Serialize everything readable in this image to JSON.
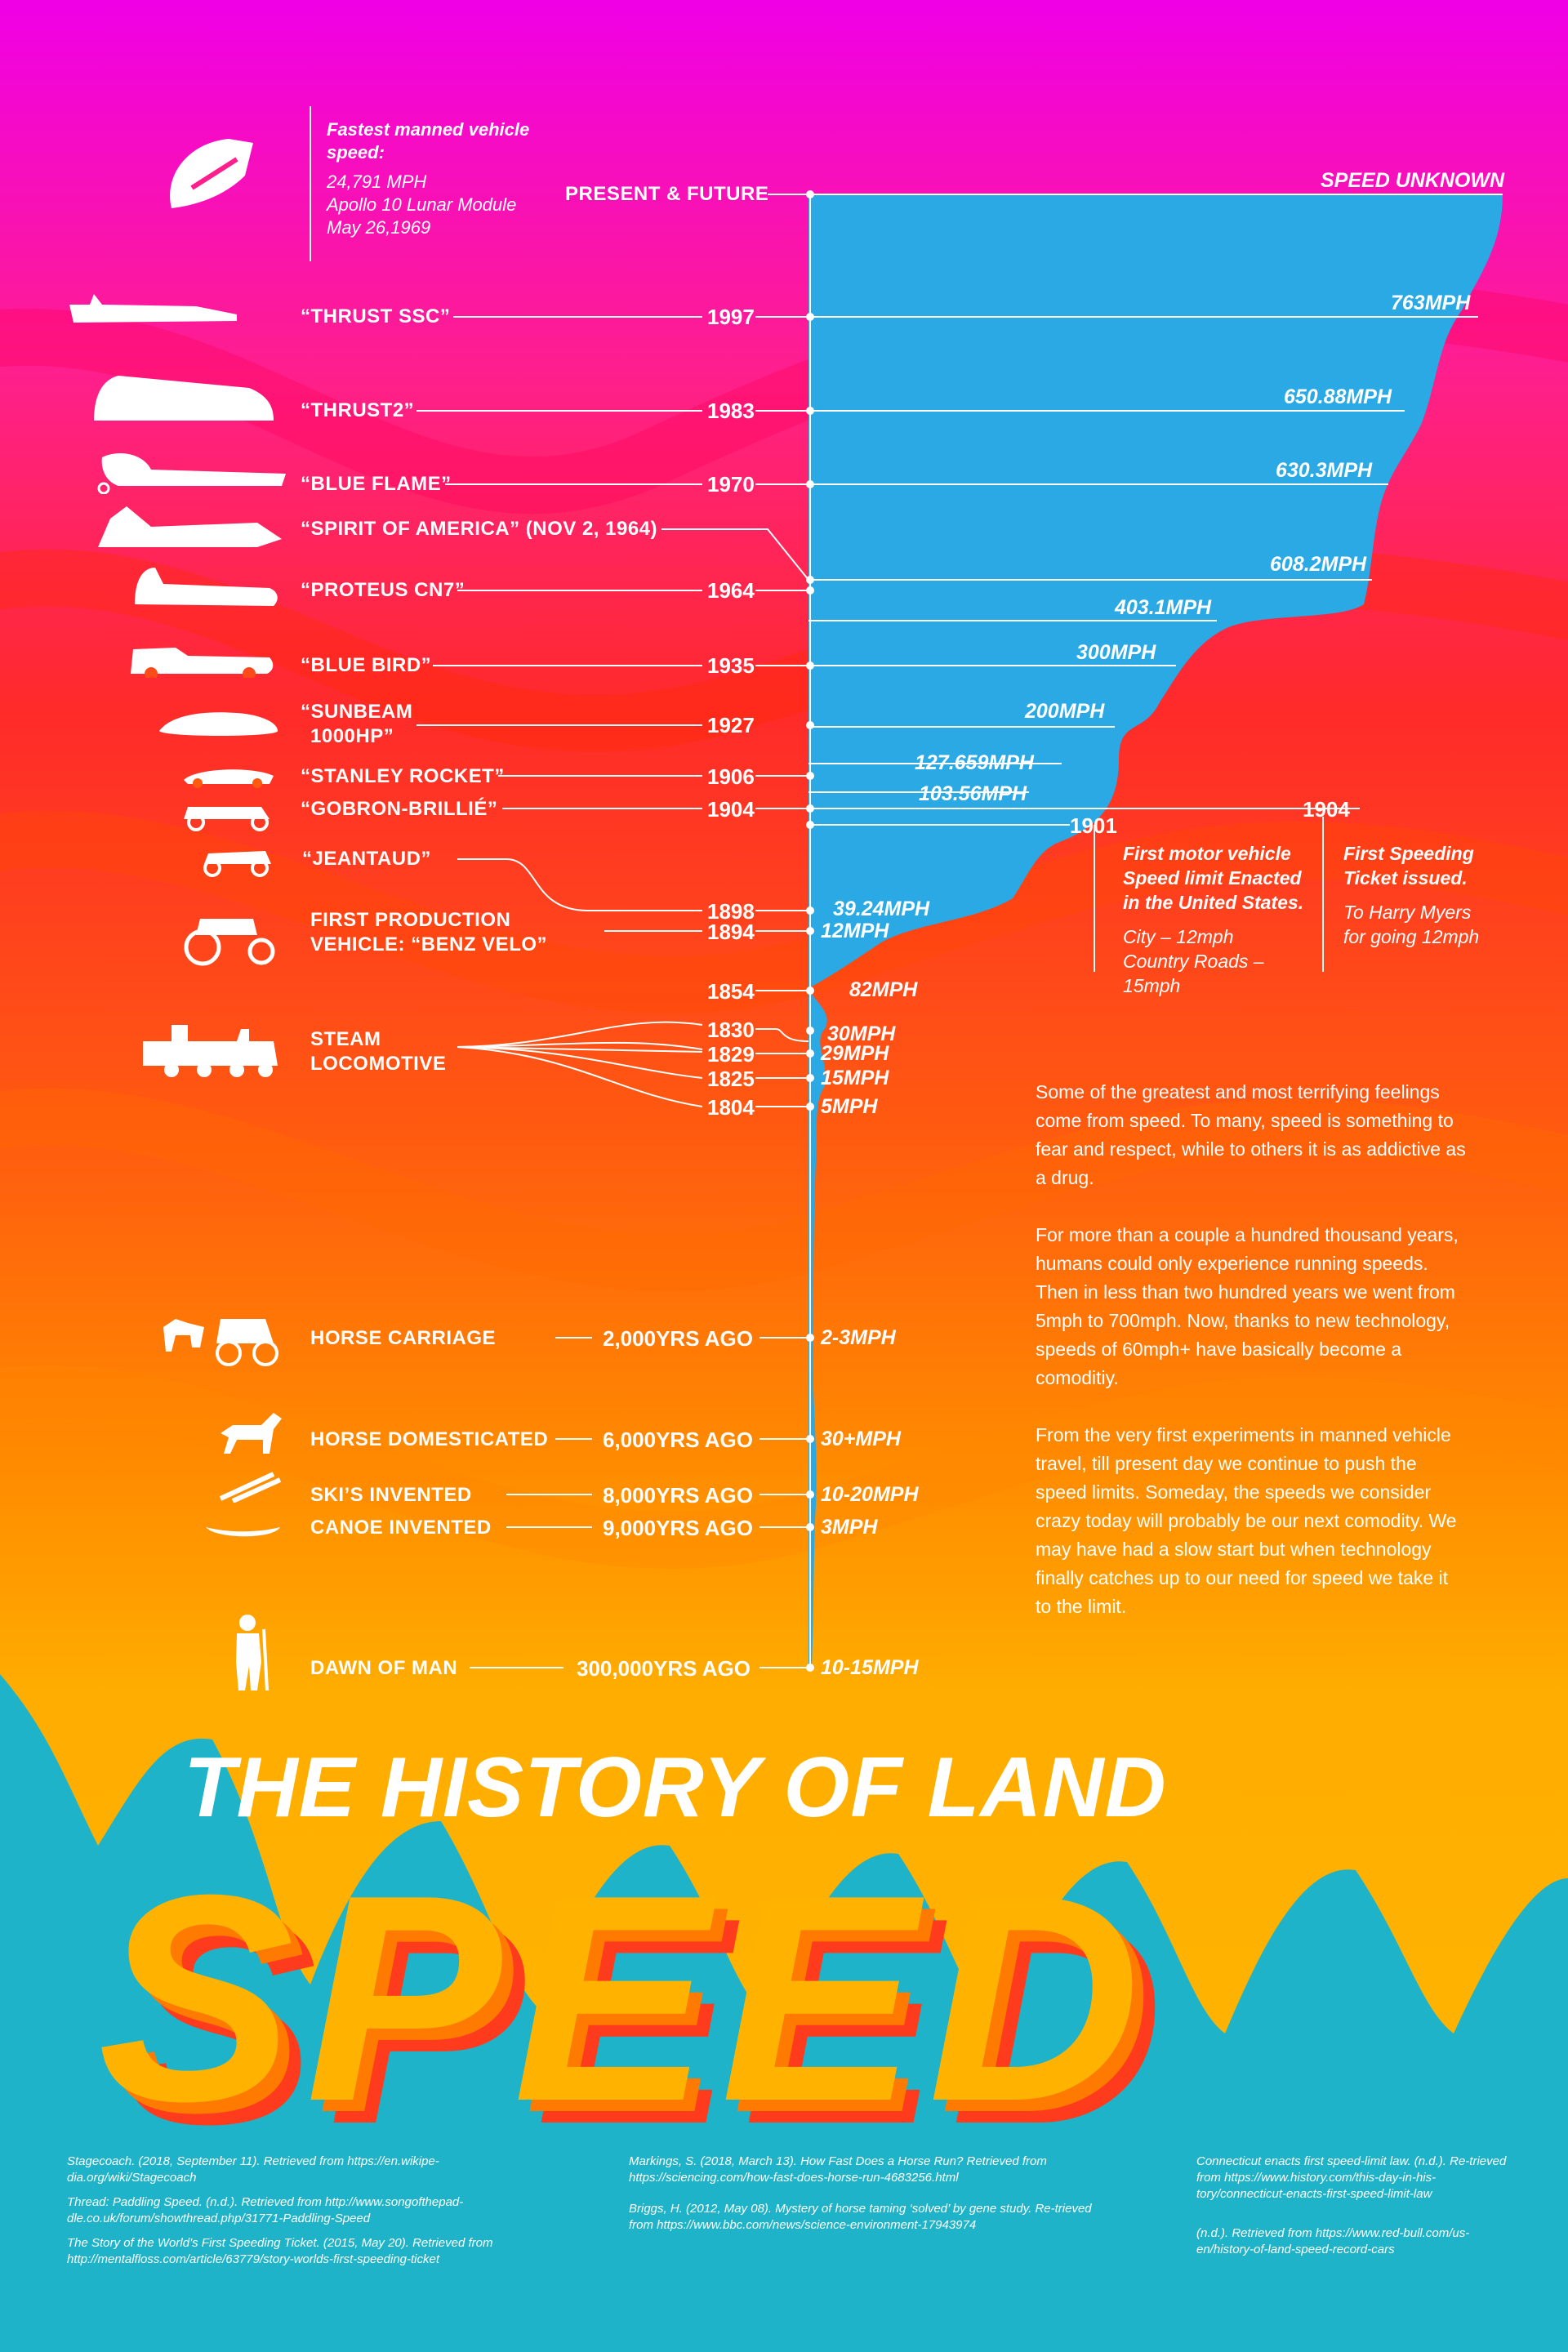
{
  "colors": {
    "magenta": "#ff00dd",
    "pink": "#ff1f8a",
    "red": "#ff2a1c",
    "orange": "#ff7a00",
    "yellow": "#ffb300",
    "blue": "#29aee3",
    "teal": "#1fb6c9"
  },
  "top_note": {
    "heading": "Fastest manned vehicle speed:",
    "line1": "24,791 MPH",
    "line2": "Apollo 10 Lunar Module",
    "line3": "May 26,1969"
  },
  "timeline": [
    {
      "label": "PRESENT & FUTURE",
      "year": "",
      "speed": "SPEED UNKNOWN",
      "icon": "capsule-icon"
    },
    {
      "label": "“THRUST SSC”",
      "year": "1997",
      "speed": "763MPH",
      "icon": "thrust-ssc-icon"
    },
    {
      "label": "“THRUST2”",
      "year": "1983",
      "speed": "650.88MPH",
      "icon": "thrust2-icon"
    },
    {
      "label": "“BLUE FLAME”",
      "year": "1970",
      "speed": "630.3MPH",
      "icon": "blue-flame-icon"
    },
    {
      "label": "“SPIRIT OF AMERICA” (NOV 2, 1964)",
      "year": "",
      "speed": "608.2MPH",
      "icon": "spirit-of-america-icon"
    },
    {
      "label": "“PROTEUS CN7”",
      "year": "1964",
      "speed": "403.1MPH",
      "icon": "proteus-icon"
    },
    {
      "label": "“BLUE BIRD”",
      "year": "1935",
      "speed": "300MPH",
      "icon": "blue-bird-icon"
    },
    {
      "label": "“SUNBEAM 1000HP”",
      "year": "1927",
      "speed": "200MPH",
      "icon": "sunbeam-icon"
    },
    {
      "label": "“STANLEY ROCKET”",
      "year": "1906",
      "speed": "127.659MPH",
      "icon": "stanley-rocket-icon"
    },
    {
      "label": "“GOBRON-BRILLIÉ”",
      "year": "1904",
      "speed": "103.56MPH",
      "icon": "gobron-icon"
    },
    {
      "label": "“JEANTAUD”",
      "year": "1898",
      "speed": "39.24MPH",
      "icon": "jeantaud-icon"
    },
    {
      "label": "FIRST PRODUCTION VEHICLE: “BENZ VELO”",
      "year": "1894",
      "speed": "12MPH",
      "icon": "benz-velo-icon"
    }
  ],
  "labels": {
    "present": "PRESENT & FUTURE",
    "speed_unknown": "SPEED UNKNOWN",
    "thrust_ssc": "“THRUST SSC”",
    "thrust2": "“THRUST2”",
    "blue_flame": "“BLUE FLAME”",
    "spirit": "“SPIRIT OF AMERICA” (NOV 2, 1964)",
    "proteus": "“PROTEUS CN7”",
    "blue_bird": "“BLUE BIRD”",
    "sunbeam1": "“SUNBEAM",
    "sunbeam2": "1000HP”",
    "stanley": "“STANLEY ROCKET”",
    "gobron": "“GOBRON-BRILLIÉ”",
    "jeantaud": "“JEANTAUD”",
    "benz1": "FIRST PRODUCTION",
    "benz2": "VEHICLE: “BENZ VELO”",
    "steam1": "STEAM",
    "steam2": "LOCOMOTIVE",
    "horse_carriage": "HORSE CARRIAGE",
    "horse_dom": "HORSE DOMESTICATED",
    "skis": "SKI’S INVENTED",
    "canoe": "CANOE INVENTED",
    "dawn": "DAWN OF MAN"
  },
  "years": {
    "y1997": "1997",
    "y1983": "1983",
    "y1970": "1970",
    "y1964": "1964",
    "y1935": "1935",
    "y1927": "1927",
    "y1906": "1906",
    "y1904": "1904",
    "y1898": "1898",
    "y1894": "1894",
    "y1854": "1854",
    "y1830": "1830",
    "y1829": "1829",
    "y1825": "1825",
    "y1804": "1804",
    "y1901": "1901",
    "y1904b": "1904",
    "ago2k": "2,000YRS AGO",
    "ago6k": "6,000YRS AGO",
    "ago8k": "8,000YRS AGO",
    "ago9k": "9,000YRS AGO",
    "ago300k": "300,000YRS AGO"
  },
  "speeds": {
    "s763": "763MPH",
    "s650": "650.88MPH",
    "s630": "630.3MPH",
    "s608": "608.2MPH",
    "s403": "403.1MPH",
    "s300": "300MPH",
    "s200": "200MPH",
    "s127": "127.659MPH",
    "s103": "103.56MPH",
    "s39": "39.24MPH",
    "s12": "12MPH",
    "s82": "82MPH",
    "s30": "30MPH",
    "s29": "29MPH",
    "s15": "15MPH",
    "s5": "5MPH",
    "s23": "2-3MPH",
    "s30p": "30+MPH",
    "s1020": "10-20MPH",
    "s3": "3MPH",
    "s1015": "10-15MPH"
  },
  "limit_note": {
    "heading1": "First motor vehicle",
    "heading2": "Speed limit Enacted",
    "heading3": "in the United States.",
    "line1": "City – 12mph",
    "line2": "Country Roads – 15mph"
  },
  "ticket_note": {
    "heading1": "First Speeding",
    "heading2": "Ticket issued.",
    "line1": "To Harry Myers",
    "line2": "for going 12mph"
  },
  "paragraphs": [
    "Some of the greatest and most terrifying feelings come from speed. To many, speed is something to fear and respect, while to others it is as addictive as a drug.",
    "For more than a couple a hundred thousand years, humans could only experience running speeds. Then in less than two hundred years we went from 5mph to 700mph. Now, thanks to new technology, speeds of 60mph+ have basically become a comoditiy.",
    "From the very first experiments in manned vehicle travel, till present day we continue to push the speed limits. Someday, the speeds we consider crazy today will probably be our next comodity. We may have had a slow start but when technology finally catches up to our need for speed we take it to the limit."
  ],
  "title": {
    "line1": "THE HISTORY OF LAND",
    "line2": "SPEED"
  },
  "references": {
    "col1": [
      "Stagecoach. (2018, September 11). Retrieved from https://en.wikipe-dia.org/wiki/Stagecoach",
      "Thread: Paddling Speed. (n.d.). Retrieved from http://www.songofthepad-dle.co.uk/forum/showthread.php/31771-Paddling-Speed",
      "The Story of the World’s First Speeding Ticket. (2015, May 20). Retrieved from http://mentalfloss.com/article/63779/story-worlds-first-speeding-ticket"
    ],
    "col2": [
      "Markings, S. (2018, March 13). How Fast Does a Horse Run? Retrieved from https://sciencing.com/how-fast-does-horse-run-4683256.html",
      "Briggs, H. (2012, May 08). Mystery of horse taming ‘solved’ by gene study. Re-trieved from https://www.bbc.com/news/science-environment-17943974"
    ],
    "col3": [
      "Connecticut enacts first speed-limit law. (n.d.). Re-trieved from https://www.history.com/this-day-in-his-tory/connecticut-enacts-first-speed-limit-law",
      "(n.d.). Retrieved from https://www.red-bull.com/us-en/history-of-land-speed-record-cars"
    ]
  }
}
